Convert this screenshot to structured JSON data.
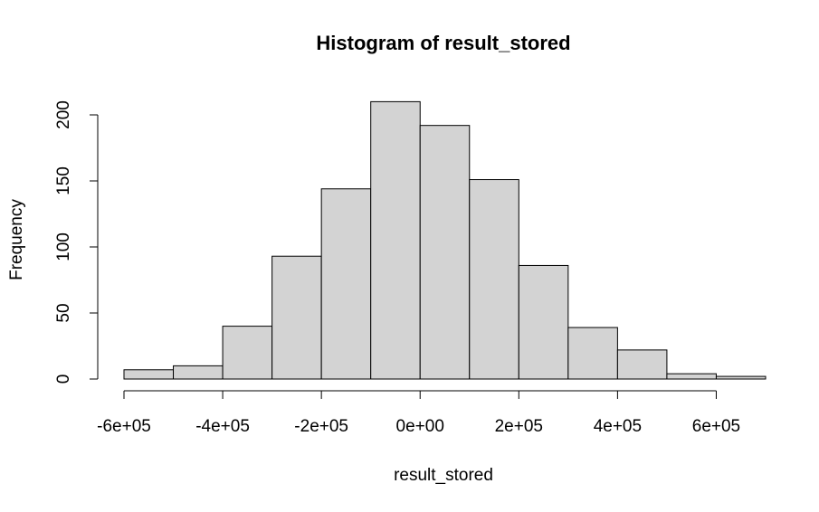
{
  "chart_data": {
    "type": "bar",
    "title": "Histogram of result_stored",
    "xlabel": "result_stored",
    "ylabel": "Frequency",
    "bin_edges": [
      -600000,
      -500000,
      -400000,
      -300000,
      -200000,
      -100000,
      0,
      100000,
      200000,
      300000,
      400000,
      500000,
      600000,
      700000
    ],
    "values": [
      7,
      10,
      40,
      93,
      144,
      210,
      192,
      151,
      86,
      39,
      22,
      4,
      2
    ],
    "xlim": [
      -600000,
      700000
    ],
    "ylim": [
      0,
      210
    ],
    "x_ticks": [
      -600000,
      -400000,
      -200000,
      0,
      200000,
      400000,
      600000
    ],
    "x_tick_labels": [
      "-6e+05",
      "-4e+05",
      "-2e+05",
      "0e+00",
      "2e+05",
      "4e+05",
      "6e+05"
    ],
    "y_ticks": [
      0,
      50,
      100,
      150,
      200
    ],
    "y_tick_labels": [
      "0",
      "50",
      "100",
      "150",
      "200"
    ],
    "grid": false,
    "bar_color": "#d3d3d3",
    "edge_color": "#000000"
  }
}
